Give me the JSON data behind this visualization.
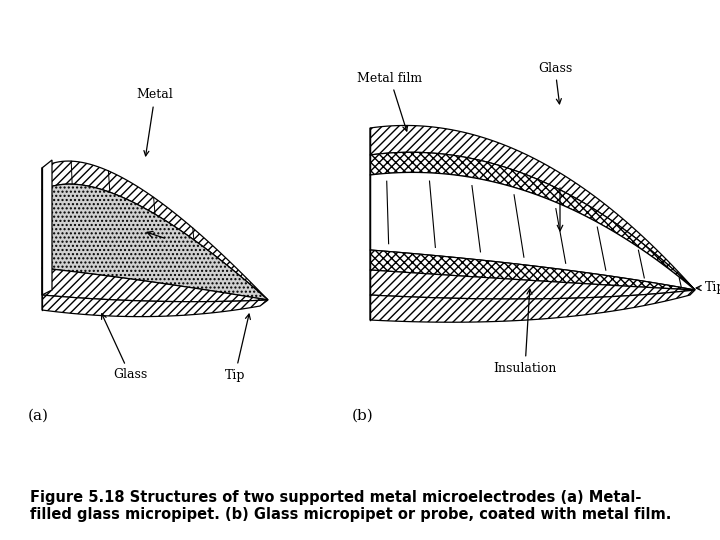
{
  "bg_color": "#ffffff",
  "fig_width": 7.2,
  "fig_height": 5.4,
  "caption": "Figure 5.18 Structures of two supported metal microelectrodes (a) Metal-\nfilled glass micropipet. (b) Glass micropipet or probe, coated with metal film.",
  "caption_fontsize": 10.5,
  "label_a": "(a)",
  "label_b": "(b)",
  "label_fontsize": 11
}
